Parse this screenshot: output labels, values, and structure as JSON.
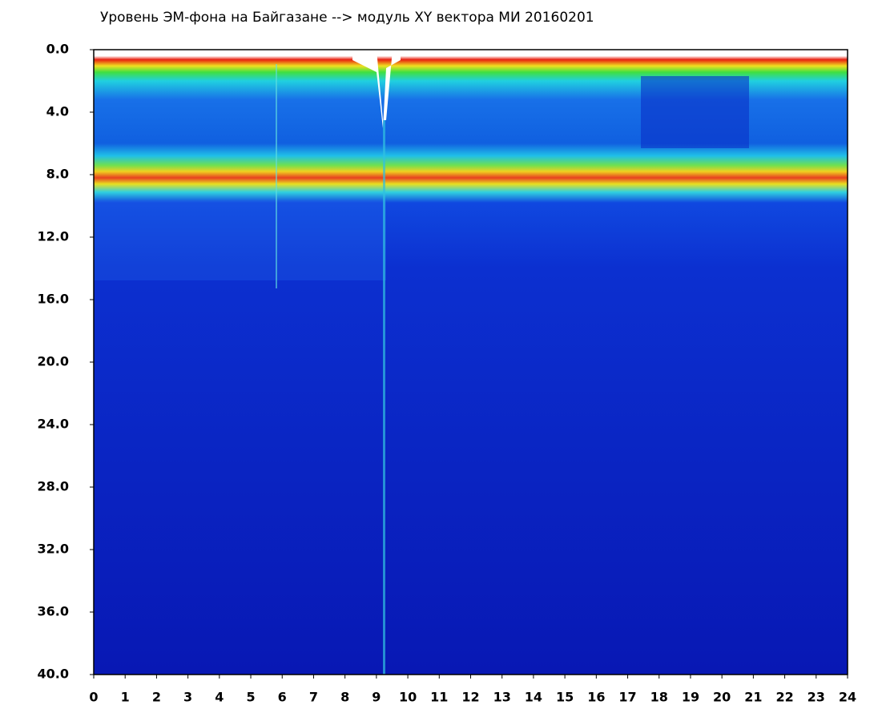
{
  "chart_data": {
    "type": "spectrogram",
    "title": "Уровень ЭМ-фона на Байгазане  --> модуль XY вектора МИ  20160201",
    "xlim": [
      0,
      24
    ],
    "xticks": [
      0,
      1,
      2,
      3,
      4,
      5,
      6,
      7,
      8,
      9,
      10,
      11,
      12,
      13,
      14,
      15,
      16,
      17,
      18,
      19,
      20,
      21,
      22,
      23,
      24
    ],
    "ylim": [
      0,
      40
    ],
    "yinverted": true,
    "yticks": [
      {
        "value": 0,
        "label": "0.0"
      },
      {
        "value": 4,
        "label": "4.0"
      },
      {
        "value": 8,
        "label": "8.0"
      },
      {
        "value": 12,
        "label": "12.0"
      },
      {
        "value": 16,
        "label": "16.0"
      },
      {
        "value": 20,
        "label": "20.0"
      },
      {
        "value": 24,
        "label": "24.0"
      },
      {
        "value": 28,
        "label": "28.0"
      },
      {
        "value": 32,
        "label": "32.0"
      },
      {
        "value": 36,
        "label": "36.0"
      },
      {
        "value": 40,
        "label": "40.0"
      }
    ]
  }
}
